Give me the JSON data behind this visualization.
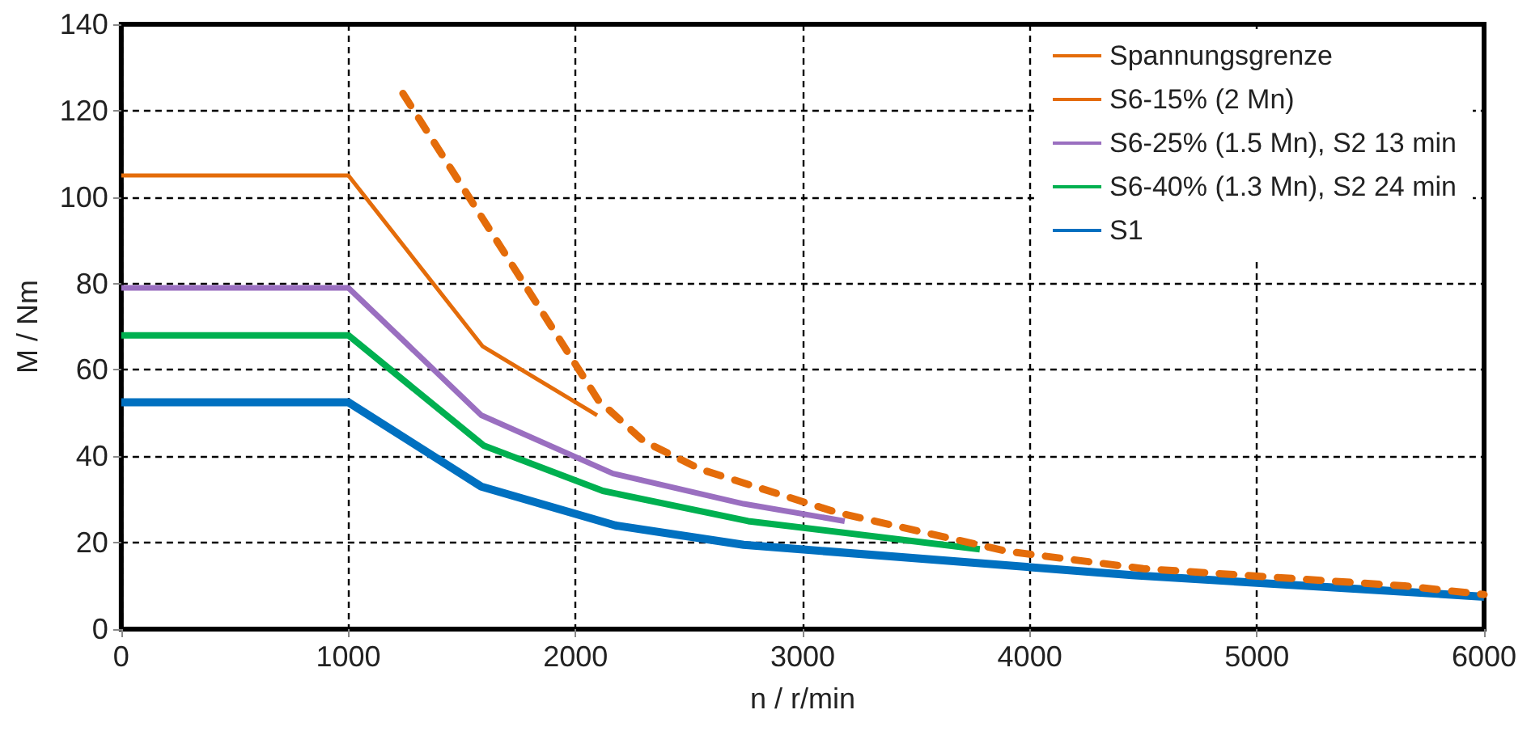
{
  "chart_data": {
    "type": "line",
    "xlabel": "n / r/min",
    "ylabel": "M / Nm",
    "xlim": [
      0,
      6000
    ],
    "xticks": [
      0,
      1000,
      2000,
      3000,
      4000,
      5000,
      6000
    ],
    "ylim": [
      0,
      140
    ],
    "yticks": [
      0,
      20,
      40,
      60,
      80,
      100,
      120,
      140
    ],
    "grid": true,
    "legend": "top right",
    "marker": "none",
    "series": [
      {
        "name": "Spannungsgrenze",
        "color": "#e46c0a",
        "line_style": "dashed",
        "x": [
          1240,
          2100,
          2300,
          2550,
          3150,
          3900,
          4500,
          5650,
          6000
        ],
        "values": [
          124,
          53,
          43.5,
          37,
          27,
          18,
          14,
          10,
          8
        ]
      },
      {
        "name": "S6-15% (2 Mn)",
        "color": "#e46c0a",
        "x": [
          0,
          1000,
          1590,
          2095
        ],
        "values": [
          105,
          105,
          65.5,
          49.5
        ]
      },
      {
        "name": "S6-25% (1.5 Mn), S2 13 min",
        "color": "#9a6fc0",
        "x": [
          0,
          1000,
          1585,
          2165,
          2740,
          3185
        ],
        "values": [
          79,
          79,
          49.5,
          36,
          29,
          25
        ]
      },
      {
        "name": "S6-40% (1.3 Mn), S2 24 min",
        "color": "#00b050",
        "x": [
          0,
          1000,
          1595,
          2120,
          2760,
          3780
        ],
        "values": [
          68,
          68,
          42.5,
          32,
          25,
          18.5
        ]
      },
      {
        "name": "S1",
        "color": "#0070c0",
        "x": [
          0,
          1000,
          1585,
          2175,
          2740,
          4450,
          6000
        ],
        "values": [
          52.5,
          52.5,
          33,
          24,
          19.5,
          12.5,
          7.5
        ]
      }
    ]
  }
}
